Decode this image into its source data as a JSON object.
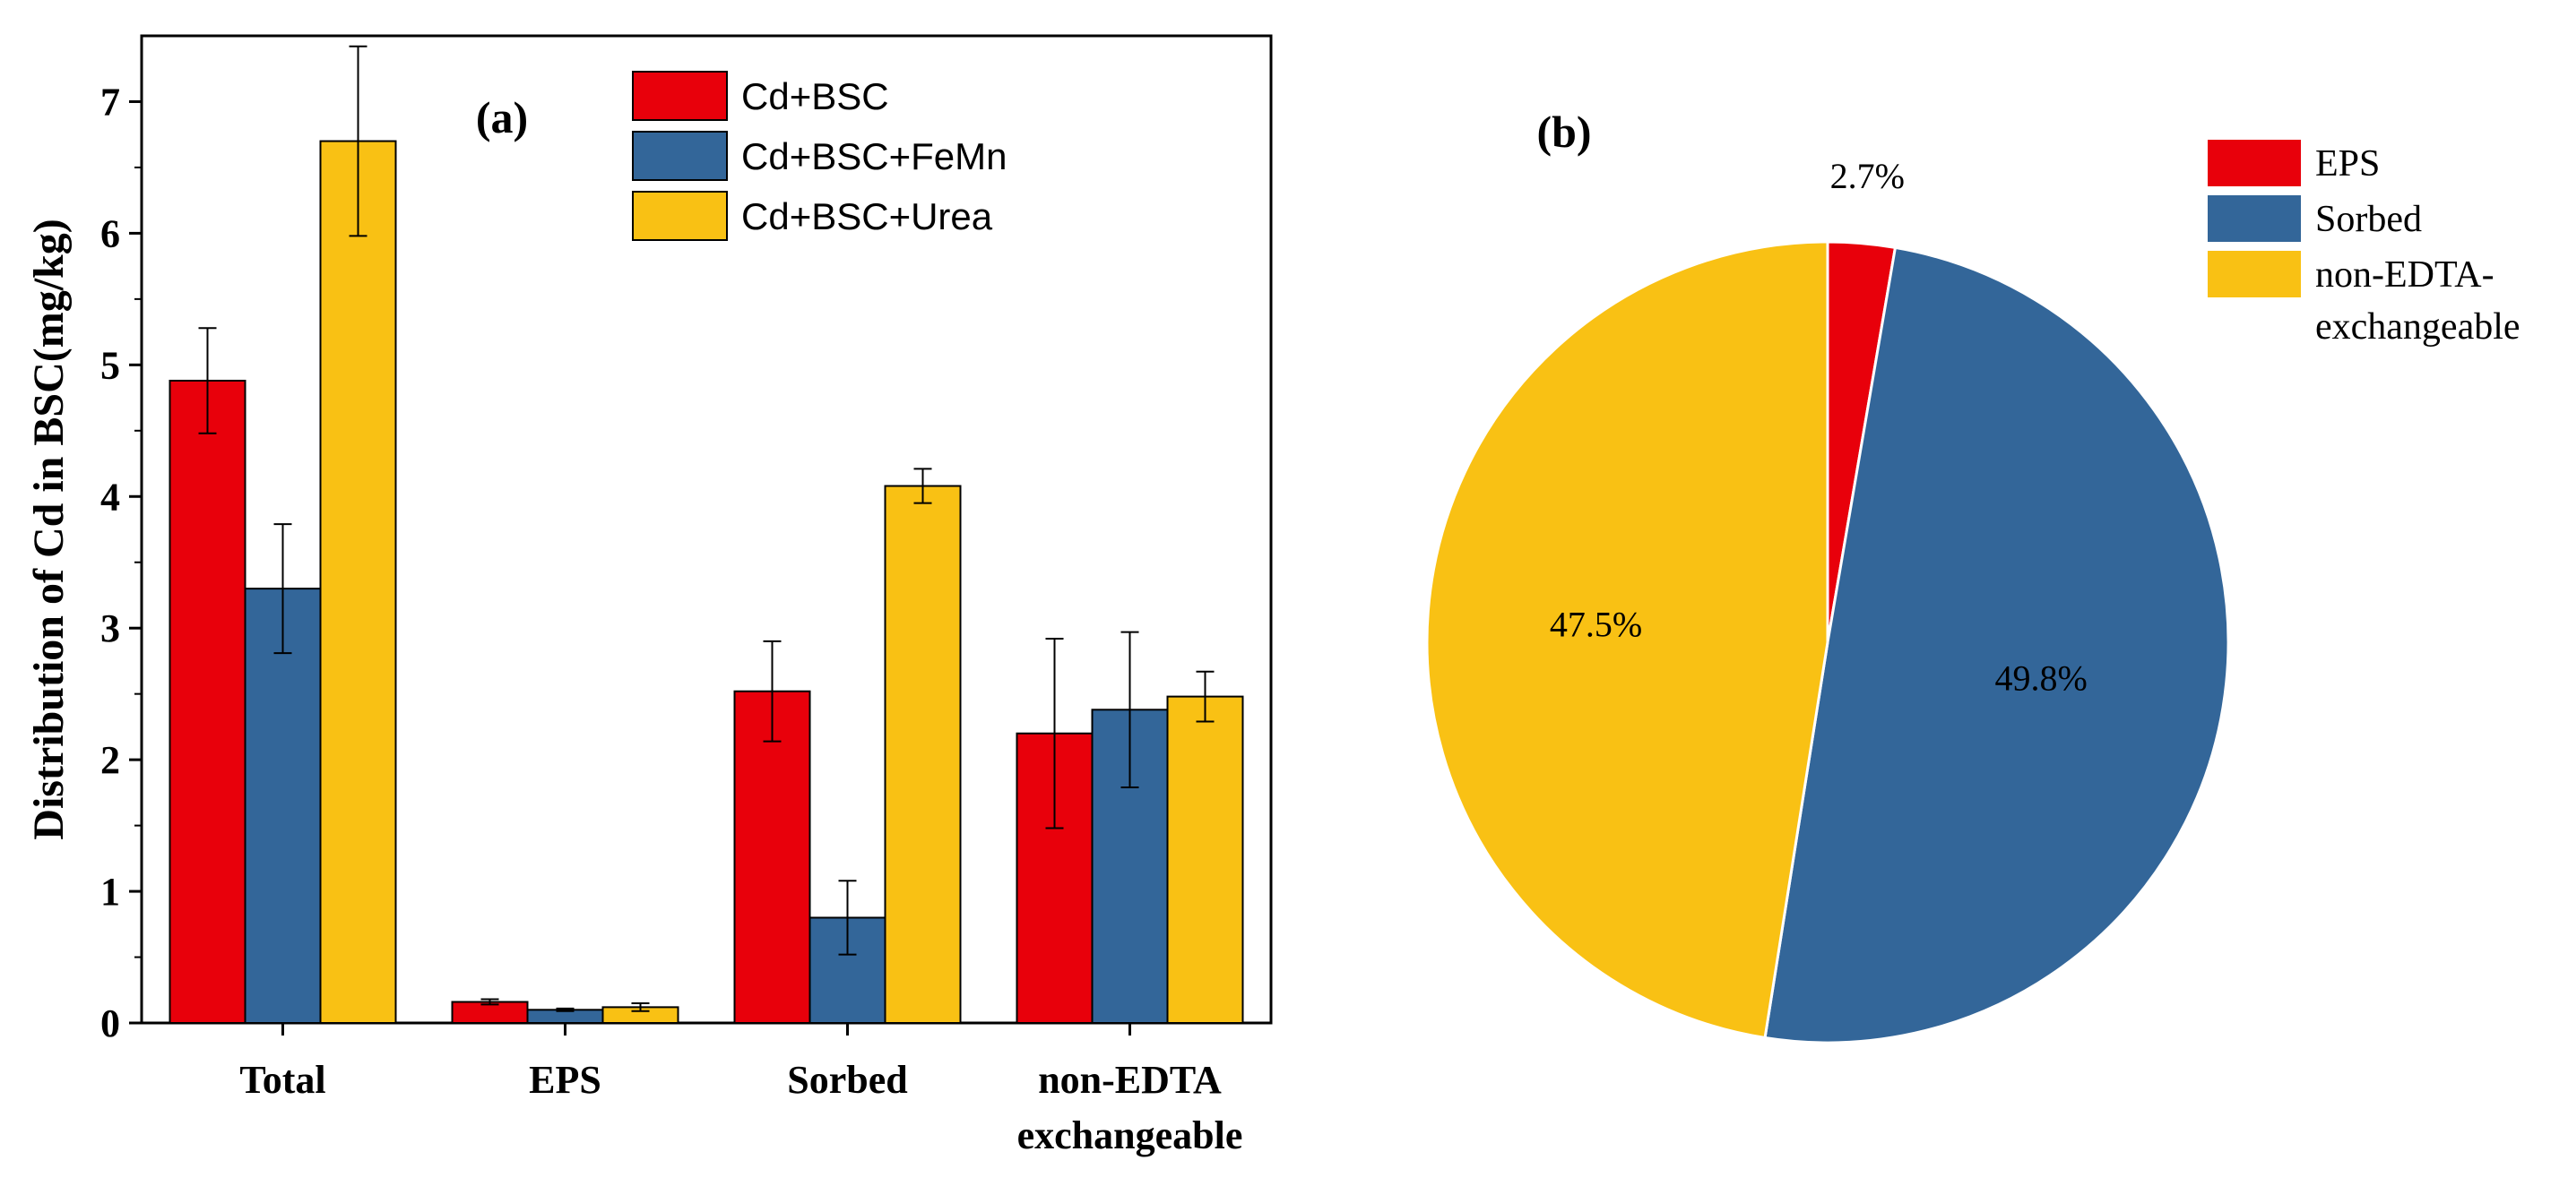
{
  "chart_data": [
    {
      "type": "bar",
      "panel_label": "(a)",
      "ylabel": "Distribution of Cd in BSC(mg/kg)",
      "xlabel": "",
      "ylim": [
        0,
        7.5
      ],
      "yticks": [
        0,
        1,
        2,
        3,
        4,
        5,
        6,
        7
      ],
      "categories": [
        "Total",
        "EPS",
        "Sorbed",
        "non-EDTA exchangeable"
      ],
      "category_lines": [
        [
          "Total"
        ],
        [
          "EPS"
        ],
        [
          "Sorbed"
        ],
        [
          "non-EDTA",
          "exchangeable"
        ]
      ],
      "legend_position": "top-right",
      "series": [
        {
          "name": "Cd+BSC",
          "color": "#e8000b",
          "values": [
            4.88,
            0.16,
            2.52,
            2.2
          ],
          "errors": [
            0.4,
            0.02,
            0.38,
            0.72
          ]
        },
        {
          "name": "Cd+BSC+FeMn",
          "color": "#336699",
          "values": [
            3.3,
            0.1,
            0.8,
            2.38
          ],
          "errors": [
            0.49,
            0.01,
            0.28,
            0.59
          ]
        },
        {
          "name": "Cd+BSC+Urea",
          "color": "#f9c114",
          "values": [
            6.7,
            0.12,
            4.08,
            2.48
          ],
          "errors": [
            0.72,
            0.03,
            0.13,
            0.19
          ]
        }
      ]
    },
    {
      "type": "pie",
      "panel_label": "(b)",
      "legend_position": "top-right",
      "slices": [
        {
          "label": "EPS",
          "legend_lines": [
            "EPS"
          ],
          "value": 2.7,
          "value_label": "2.7%",
          "color": "#e8000b"
        },
        {
          "label": "Sorbed",
          "legend_lines": [
            "Sorbed"
          ],
          "value": 49.8,
          "value_label": "49.8%",
          "color": "#336699"
        },
        {
          "label": "non-EDTA-exchangeable",
          "legend_lines": [
            "non-EDTA-",
            "exchangeable"
          ],
          "value": 47.5,
          "value_label": "47.5%",
          "color": "#f9c114"
        }
      ]
    }
  ]
}
